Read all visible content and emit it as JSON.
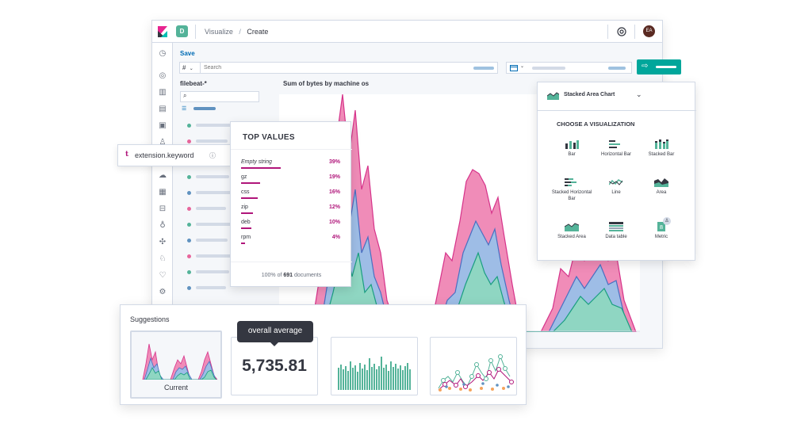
{
  "header": {
    "space_letter": "D",
    "breadcrumb_parent": "Visualize",
    "breadcrumb_sep": "/",
    "breadcrumb_current": "Create",
    "avatar_initials": "EA"
  },
  "toolbar": {
    "save_label": "Save",
    "query_lang_symbol": "#",
    "search_placeholder": "Search"
  },
  "sidebar": {
    "index_pattern": "filebeat-*"
  },
  "chart": {
    "title": "Sum of bytes by machine os"
  },
  "field_tip": {
    "field_name": "extension.keyword"
  },
  "top_values": {
    "title": "TOP VALUES",
    "rows": [
      {
        "label": "Empty string",
        "pct": "39%",
        "value": 39
      },
      {
        "label": "gz",
        "pct": "19%",
        "value": 19
      },
      {
        "label": "css",
        "pct": "16%",
        "value": 16
      },
      {
        "label": "zip",
        "pct": "12%",
        "value": 12
      },
      {
        "label": "deb",
        "pct": "10%",
        "value": 10
      },
      {
        "label": "rpm",
        "pct": "4%",
        "value": 4
      }
    ],
    "footer_prefix": "100% of",
    "footer_count": "691",
    "footer_suffix": "documents"
  },
  "vis_panel": {
    "selected": "Stacked Area Chart",
    "heading": "CHOOSE A VISUALIZATION",
    "items": [
      {
        "label": "Bar",
        "icon": "bar-chart-icon"
      },
      {
        "label": "Horizontal Bar",
        "icon": "horizontal-bar-icon"
      },
      {
        "label": "Stacked Bar",
        "icon": "stacked-bar-icon"
      },
      {
        "label": "Stacked Horizontal Bar",
        "icon": "stacked-horizontal-bar-icon"
      },
      {
        "label": "Line",
        "icon": "line-chart-icon"
      },
      {
        "label": "Area",
        "icon": "area-chart-icon"
      },
      {
        "label": "Stacked Area",
        "icon": "stacked-area-icon"
      },
      {
        "label": "Data table",
        "icon": "data-table-icon"
      },
      {
        "label": "Metric",
        "icon": "metric-icon"
      }
    ]
  },
  "suggestions": {
    "title": "Suggestions",
    "tooltip": "overall average",
    "current_label": "Current",
    "metric_value": "5,735.81"
  },
  "colors": {
    "accent": "#00a69b",
    "pink": "#e7669c",
    "blue": "#6092c0",
    "green": "#54b399",
    "magenta": "#b0157a"
  }
}
